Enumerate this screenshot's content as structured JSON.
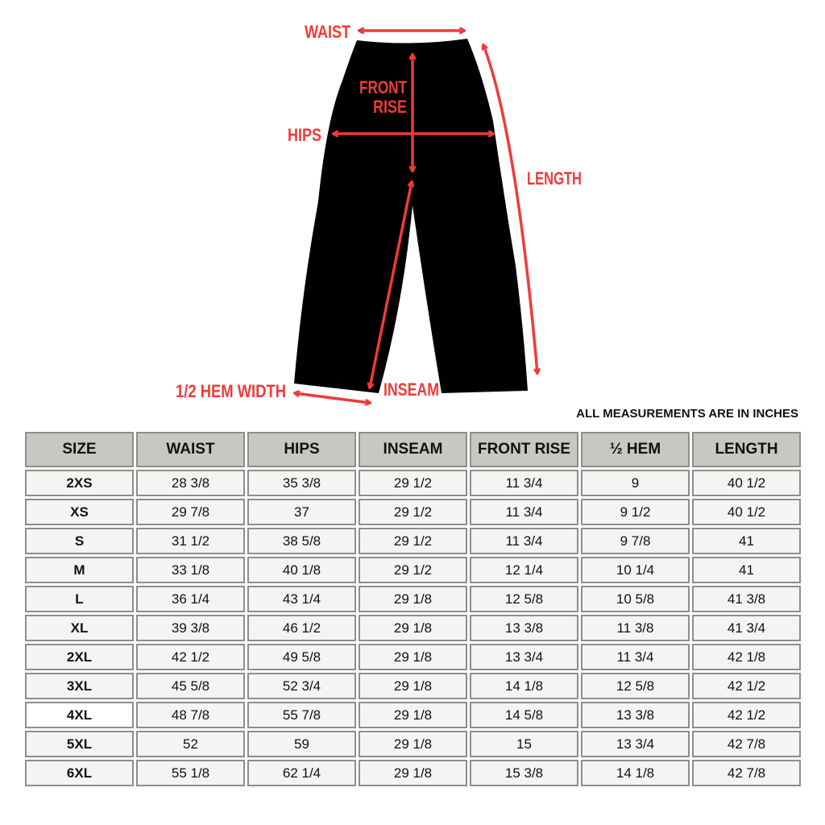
{
  "diagram": {
    "labels": {
      "waist": "WAIST",
      "front_rise_1": "FRONT",
      "front_rise_2": "RISE",
      "hips": "HIPS",
      "length": "LENGTH",
      "hem_width": "1/2 HEM WIDTH",
      "inseam": "INSEAM"
    },
    "colors": {
      "arrow": "#f03a3a",
      "garment": "#000000"
    }
  },
  "note": "ALL MEASUREMENTS ARE IN INCHES",
  "table": {
    "headers": [
      "SIZE",
      "WAIST",
      "HIPS",
      "INSEAM",
      "FRONT RISE",
      "½ HEM",
      "LENGTH"
    ],
    "rows": [
      [
        "2XS",
        "28 3/8",
        "35 3/8",
        "29 1/2",
        "11 3/4",
        "9",
        "40 1/2"
      ],
      [
        "XS",
        "29 7/8",
        "37",
        "29 1/2",
        "11 3/4",
        "9 1/2",
        "40 1/2"
      ],
      [
        "S",
        "31 1/2",
        "38 5/8",
        "29 1/2",
        "11 3/4",
        "9 7/8",
        "41"
      ],
      [
        "M",
        "33 1/8",
        "40 1/8",
        "29 1/2",
        "12 1/4",
        "10 1/4",
        "41"
      ],
      [
        "L",
        "36 1/4",
        "43 1/4",
        "29 1/8",
        "12 5/8",
        "10 5/8",
        "41 3/8"
      ],
      [
        "XL",
        "39 3/8",
        "46 1/2",
        "29 1/8",
        "13 3/8",
        "11 3/8",
        "41 3/4"
      ],
      [
        "2XL",
        "42 1/2",
        "49 5/8",
        "29 1/8",
        "13 3/4",
        "11 3/4",
        "42 1/8"
      ],
      [
        "3XL",
        "45 5/8",
        "52 3/4",
        "29 1/8",
        "14 1/8",
        "12 5/8",
        "42 1/2"
      ],
      [
        "4XL",
        "48 7/8",
        "55 7/8",
        "29 1/8",
        "14 5/8",
        "13 3/8",
        "42 1/2"
      ],
      [
        "5XL",
        "52",
        "59",
        "29 1/8",
        "15",
        "13 3/4",
        "42 7/8"
      ],
      [
        "6XL",
        "55 1/8",
        "62 1/4",
        "29 1/8",
        "15 3/8",
        "14 1/8",
        "42 7/8"
      ]
    ]
  }
}
